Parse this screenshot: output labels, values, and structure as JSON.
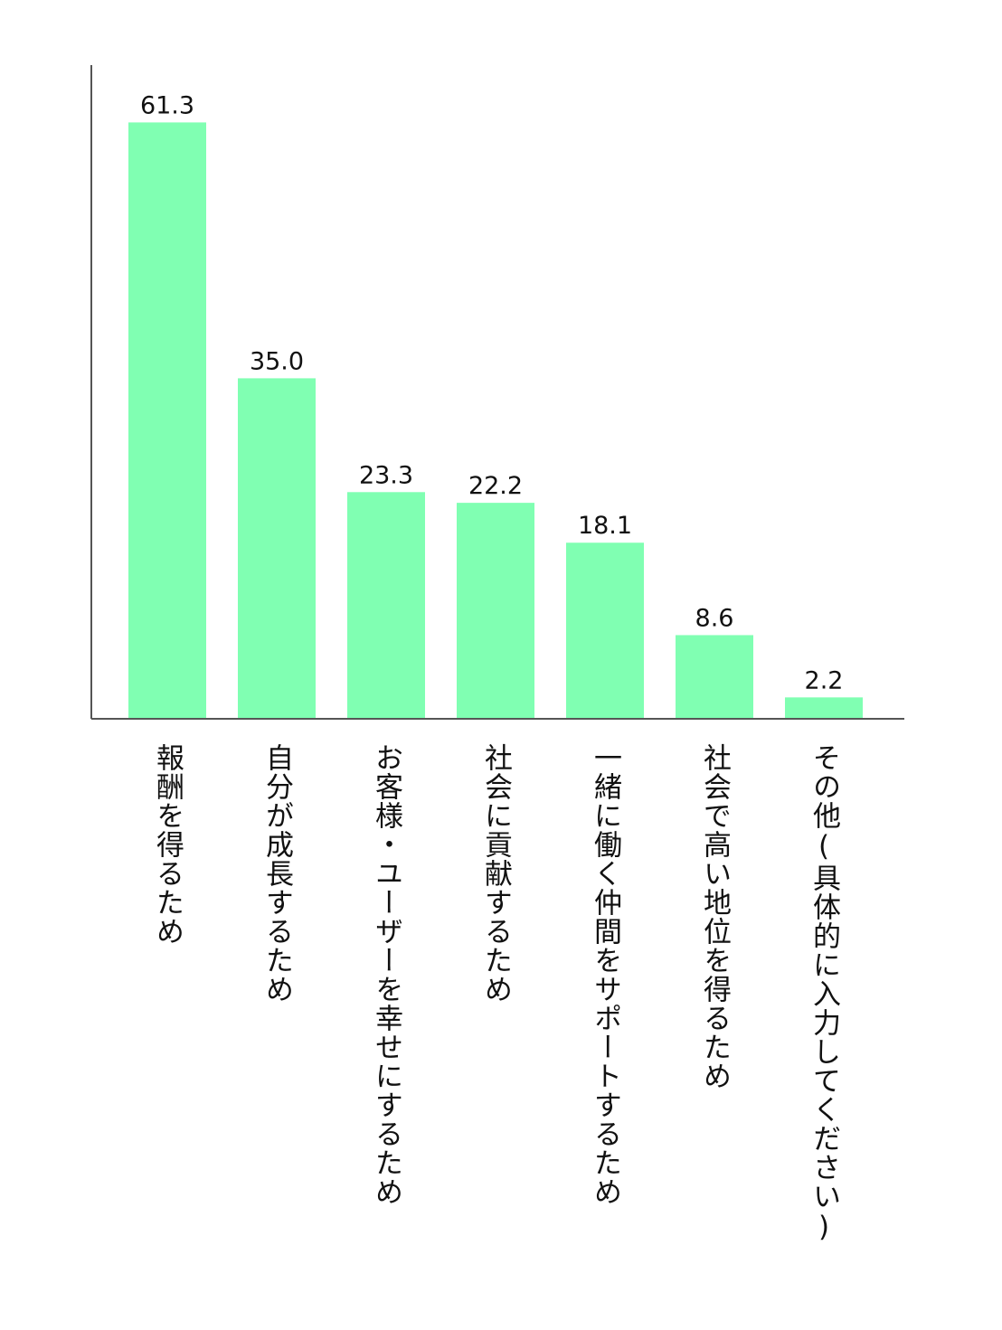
{
  "chart_data": {
    "type": "bar",
    "title": "",
    "xlabel": "",
    "ylabel": "",
    "ylim": [
      0,
      65
    ],
    "grid": false,
    "legend": "none",
    "bar_color": "#80ffb2",
    "axis_color": "#555555",
    "categories": [
      "報酬を得るため",
      "自分が成長するため",
      "お客様・ユーザーを幸せにするため",
      "社会に貢献するため",
      "一緒に働く仲間をサポートするため",
      "社会で高い地位を得るため",
      "その他(具体的に入力してください)"
    ],
    "values": [
      61.3,
      35.0,
      23.3,
      22.2,
      18.1,
      8.6,
      2.2
    ],
    "value_labels": [
      "61.3",
      "35.0",
      "23.3",
      "22.2",
      "18.1",
      "8.6",
      "2.2"
    ]
  }
}
